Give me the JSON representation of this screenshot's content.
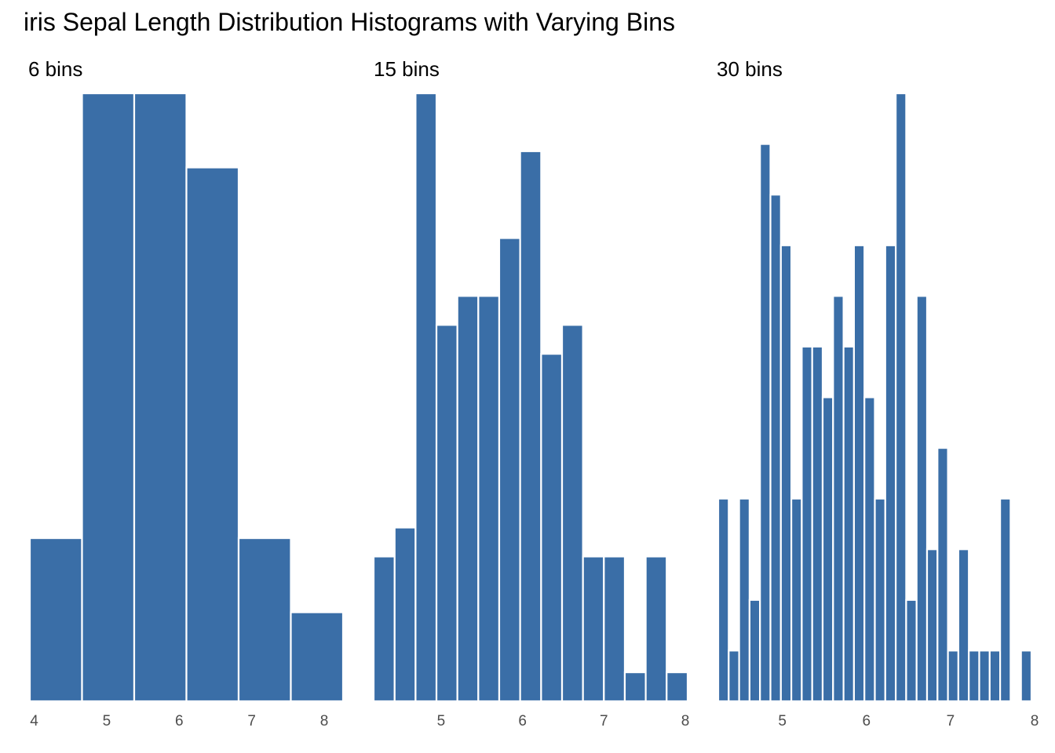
{
  "title": "iris Sepal Length Distribution Histograms with Varying Bins",
  "bar_color": "#3A6EA7",
  "chart_data": [
    {
      "type": "bar",
      "title": "6 bins",
      "bin_edges": [
        3.94,
        4.66,
        5.38,
        6.1,
        6.82,
        7.54,
        8.26
      ],
      "values": [
        11,
        41,
        41,
        36,
        11,
        6
      ],
      "x_ticks": [
        "4",
        "5",
        "6",
        "7",
        "8"
      ],
      "x_tick_values": [
        4,
        5,
        6,
        7,
        8
      ],
      "xlim": [
        3.94,
        8.26
      ],
      "ylim": [
        0,
        41
      ],
      "grid": false
    },
    {
      "type": "bar",
      "title": "15 bins",
      "bin_edges": [
        4.171,
        4.429,
        4.686,
        4.943,
        5.2,
        5.457,
        5.714,
        5.971,
        6.229,
        6.486,
        6.743,
        7.0,
        7.257,
        7.514,
        7.771,
        8.029
      ],
      "values": [
        10,
        12,
        42,
        26,
        28,
        28,
        32,
        38,
        24,
        26,
        10,
        10,
        2,
        10,
        2
      ],
      "x_ticks": [
        "5",
        "6",
        "7",
        "8"
      ],
      "x_tick_values": [
        5,
        6,
        7,
        8
      ],
      "xlim": [
        4.171,
        8.029
      ],
      "ylim": [
        0,
        42
      ],
      "grid": false
    },
    {
      "type": "bar",
      "title": "30 bins",
      "bin_edges": [
        4.2379,
        4.3621,
        4.4862,
        4.6103,
        4.7345,
        4.8586,
        4.9828,
        5.1069,
        5.231,
        5.3552,
        5.4793,
        5.6034,
        5.7276,
        5.8517,
        5.9759,
        6.1,
        6.2241,
        6.3483,
        6.4724,
        6.5966,
        6.7207,
        6.8448,
        6.969,
        7.0931,
        7.2172,
        7.3414,
        7.4655,
        7.5897,
        7.7138,
        7.8379,
        7.9621
      ],
      "values": [
        4,
        1,
        4,
        2,
        11,
        10,
        9,
        4,
        7,
        7,
        6,
        8,
        7,
        9,
        6,
        4,
        9,
        12,
        2,
        8,
        3,
        5,
        1,
        3,
        1,
        1,
        1,
        4,
        0,
        1
      ],
      "x_ticks": [
        "5",
        "6",
        "7",
        "8"
      ],
      "x_tick_values": [
        5,
        6,
        7,
        8
      ],
      "xlim": [
        4.2379,
        7.9621
      ],
      "ylim": [
        0,
        12
      ],
      "grid": false
    }
  ]
}
